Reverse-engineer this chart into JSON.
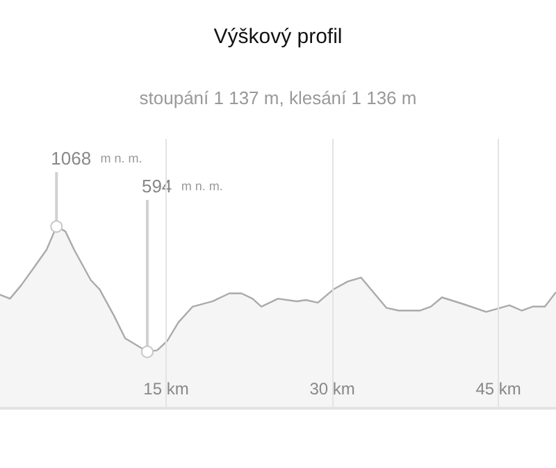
{
  "chart_data": {
    "type": "area",
    "title": "Výškový profil",
    "subtitle": "stoupání 1 137 m, klesání 1 136 m",
    "x": [
      0,
      0.9,
      1.9,
      3.1,
      4.2,
      5.1,
      5.9,
      6.7,
      8.2,
      9.0,
      10.3,
      11.3,
      12.3,
      13.3,
      14.2,
      15.1,
      16.1,
      17.4,
      19.2,
      20.7,
      21.8,
      22.8,
      23.6,
      25.1,
      26.8,
      27.6,
      28.7,
      30.1,
      31.4,
      32.6,
      34.9,
      36.0,
      37.9,
      38.9,
      39.9,
      41.8,
      43.9,
      46.0,
      47.1,
      48.1,
      49.2,
      50.2
    ],
    "series": [
      {
        "color": "#aaaaaa",
        "values": [
          810,
          795,
          845,
          915,
          980,
          1068,
          1050,
          980,
          865,
          830,
          730,
          645,
          620,
          594,
          600,
          635,
          705,
          765,
          785,
          815,
          815,
          795,
          765,
          795,
          785,
          790,
          780,
          830,
          860,
          875,
          760,
          750,
          750,
          765,
          800,
          775,
          745,
          770,
          750,
          765,
          765,
          820
        ],
        "value_labels": [
          null,
          null,
          null,
          null,
          null,
          "1068 m n. m.",
          null,
          null,
          null,
          null,
          null,
          null,
          null,
          "594 m n. m.",
          null,
          null,
          null,
          null,
          null,
          null,
          null,
          null,
          null,
          null,
          null,
          null,
          null,
          null,
          null,
          null,
          null,
          null,
          null,
          null,
          null,
          null,
          null,
          null,
          null,
          null,
          null,
          null
        ]
      }
    ],
    "xlim": [
      0,
      50.2
    ],
    "xticks": [
      {
        "value": 15,
        "label": "15 km"
      },
      {
        "value": 30,
        "label": "30 km"
      },
      {
        "value": 45,
        "label": "45 km"
      }
    ],
    "ylim": [
      380,
      1400
    ],
    "grid": "x",
    "marker": "none"
  }
}
